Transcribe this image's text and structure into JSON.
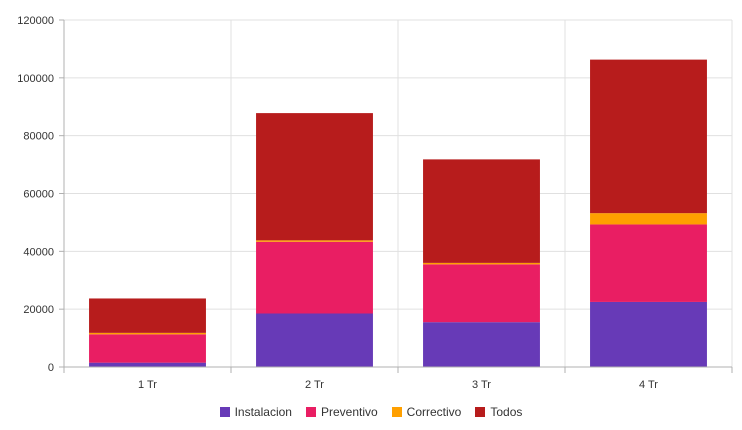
{
  "chart_data": {
    "type": "bar",
    "stacked": true,
    "categories": [
      "1 Tr",
      "2 Tr",
      "3 Tr",
      "4 Tr"
    ],
    "series": [
      {
        "name": "Instalacion",
        "color": "#673ab7",
        "values": [
          1500,
          18500,
          15500,
          22500
        ]
      },
      {
        "name": "Preventivo",
        "color": "#e91e63",
        "values": [
          9800,
          24800,
          20000,
          26800
        ]
      },
      {
        "name": "Correctivo",
        "color": "#ffa000",
        "values": [
          500,
          500,
          500,
          3900
        ]
      },
      {
        "name": "Todos",
        "color": "#b71c1c",
        "values": [
          11900,
          44000,
          35800,
          53100
        ]
      }
    ],
    "ylim": [
      0,
      120000
    ],
    "yticks": [
      0,
      20000,
      40000,
      60000,
      80000,
      100000,
      120000
    ],
    "grid": true,
    "legend_position": "bottom",
    "title": "",
    "xlabel": "",
    "ylabel": ""
  }
}
